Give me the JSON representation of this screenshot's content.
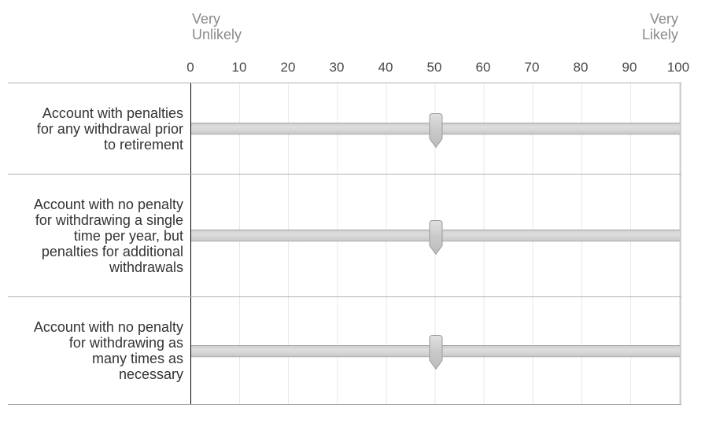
{
  "scale": {
    "left_anchor": "Very\nUnlikely",
    "right_anchor": "Very\nLikely",
    "min": 0,
    "max": 100,
    "ticks": [
      "0",
      "10",
      "20",
      "30",
      "40",
      "50",
      "60",
      "70",
      "80",
      "90",
      "100"
    ]
  },
  "rows": [
    {
      "label": "Account with penalties\nfor any withdrawal prior\nto retirement",
      "value": 50
    },
    {
      "label": "Account with no penalty\nfor withdrawing a single\ntime per year, but\npenalties for additional\nwithdrawals",
      "value": 50
    },
    {
      "label": "Account with no penalty\nfor withdrawing as\nmany times as\nnecessary",
      "value": 50
    }
  ],
  "colors": {
    "track_fill": "#d4d4d4",
    "track_border": "#a6a6a6",
    "handle_fill": "#c9c9c9",
    "handle_border": "#9a9a9a",
    "grid_line": "#e9e9e9",
    "row_divider": "#b2b2b2",
    "axis_line": "#000000",
    "right_edge_line": "#cfcfcf",
    "label_text": "#333333",
    "tick_text": "#484848",
    "anchor_text": "#898989"
  }
}
